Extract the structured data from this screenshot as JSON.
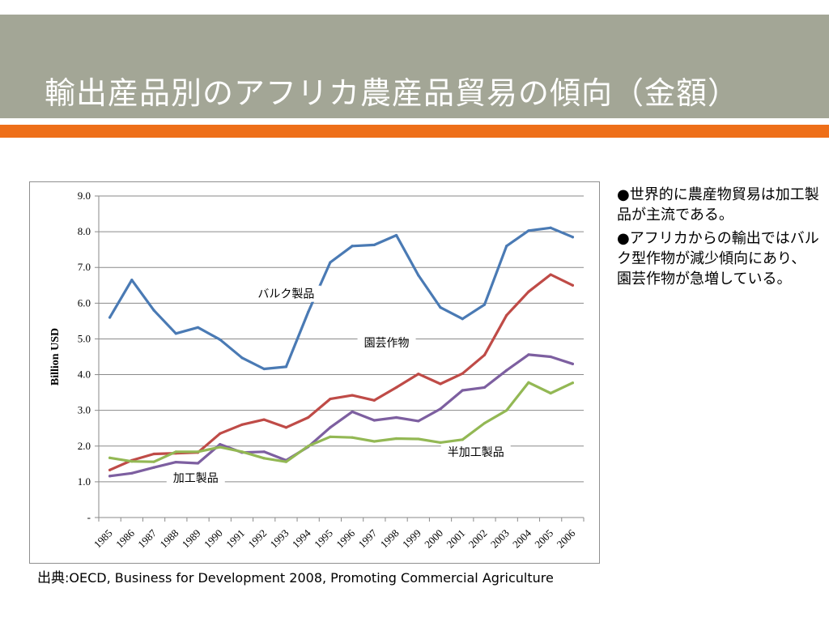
{
  "slide": {
    "title": "輸出産品別のアフリカ農産品貿易の傾向（金額）",
    "colors": {
      "header": "#a3a696",
      "accent": "#ee6f19"
    }
  },
  "bullets": [
    "●世界的に農産物貿易は加工製品が主流である。",
    "●アフリカからの輸出ではバルク型作物が減少傾向にあり、園芸作物が急増している。"
  ],
  "source": {
    "label": "出典",
    "text": ":OECD, Business for Development 2008, Promoting Commercial Agriculture"
  },
  "chart_data": {
    "type": "line",
    "ylabel": "Billion USD",
    "ylim": [
      0,
      9
    ],
    "yticks": [
      "-",
      "1.0",
      "2.0",
      "3.0",
      "4.0",
      "5.0",
      "6.0",
      "7.0",
      "8.0",
      "9.0"
    ],
    "x": [
      "1985",
      "1986",
      "1987",
      "1988",
      "1989",
      "1990",
      "1991",
      "1992",
      "1993",
      "1994",
      "1995",
      "1996",
      "1997",
      "1998",
      "1999",
      "2000",
      "2001",
      "2002",
      "2003",
      "2004",
      "2005",
      "2006"
    ],
    "grid": true,
    "series": [
      {
        "key": "bulk",
        "color": "#4a7ab4",
        "values": [
          5.6,
          6.65,
          5.8,
          5.15,
          5.32,
          4.98,
          4.47,
          4.16,
          4.22,
          5.75,
          7.14,
          7.6,
          7.63,
          7.9,
          6.78,
          5.88,
          5.56,
          5.96,
          7.6,
          8.03,
          8.11,
          7.85
        ]
      },
      {
        "key": "horticulture",
        "color": "#bf4b47",
        "values": [
          1.33,
          1.6,
          1.78,
          1.8,
          1.82,
          2.35,
          2.6,
          2.74,
          2.52,
          2.8,
          3.32,
          3.42,
          3.28,
          3.64,
          4.02,
          3.74,
          4.03,
          4.55,
          5.66,
          6.32,
          6.8,
          6.5
        ]
      },
      {
        "key": "processed",
        "color": "#7d5fa0",
        "values": [
          1.16,
          1.24,
          1.4,
          1.55,
          1.52,
          2.05,
          1.82,
          1.84,
          1.6,
          1.98,
          2.52,
          2.96,
          2.72,
          2.8,
          2.7,
          3.04,
          3.56,
          3.64,
          4.12,
          4.56,
          4.5,
          4.3
        ]
      },
      {
        "key": "semi",
        "color": "#93b854",
        "values": [
          1.67,
          1.57,
          1.56,
          1.84,
          1.84,
          1.97,
          1.84,
          1.66,
          1.56,
          2.0,
          2.26,
          2.24,
          2.13,
          2.21,
          2.2,
          2.1,
          2.18,
          2.64,
          3.0,
          3.78,
          3.48,
          3.77
        ]
      }
    ],
    "annotations": {
      "bulk": "バルク製品",
      "horticulture": "園芸作物",
      "semi": "半加工製品",
      "processed": "加工製品"
    }
  }
}
